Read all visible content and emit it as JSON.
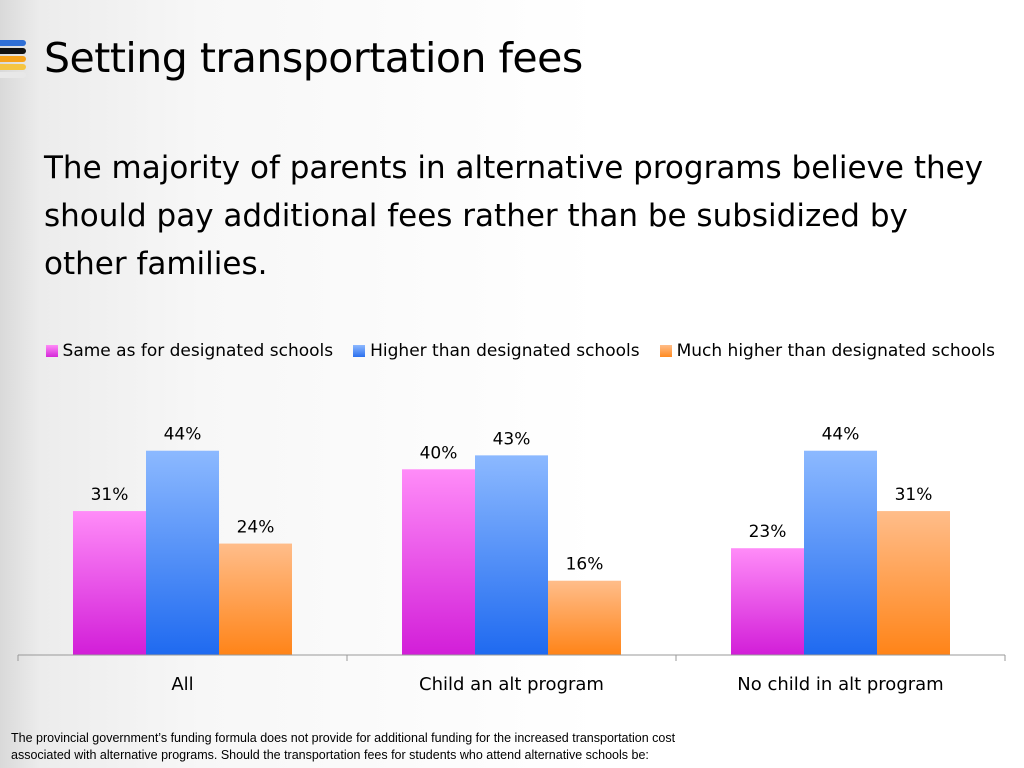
{
  "title": "Setting transportation fees",
  "subtitle": "The majority of parents in alternative programs believe they should pay additional fees rather than be subsidized by other families.",
  "footnote": "The provincial government’s funding formula does not provide for additional funding for the increased transportation cost associated with alternative programs. Should the transportation fees for students who attend alternative schools be:",
  "chart_data": {
    "type": "bar",
    "categories": [
      "All",
      "Child an alt program",
      "No child in alt program"
    ],
    "series": [
      {
        "name": "Same as for designated schools",
        "values": [
          31,
          40,
          23
        ],
        "color": "#e040e8"
      },
      {
        "name": "Higher than designated schools",
        "values": [
          44,
          43,
          44
        ],
        "color": "#3f86f0"
      },
      {
        "name": "Much higher than designated schools",
        "values": [
          24,
          16,
          31
        ],
        "color": "#ff9a40"
      }
    ],
    "value_suffix": "%",
    "ylim": [
      0,
      56
    ],
    "legend_position": "top",
    "grid": false
  }
}
